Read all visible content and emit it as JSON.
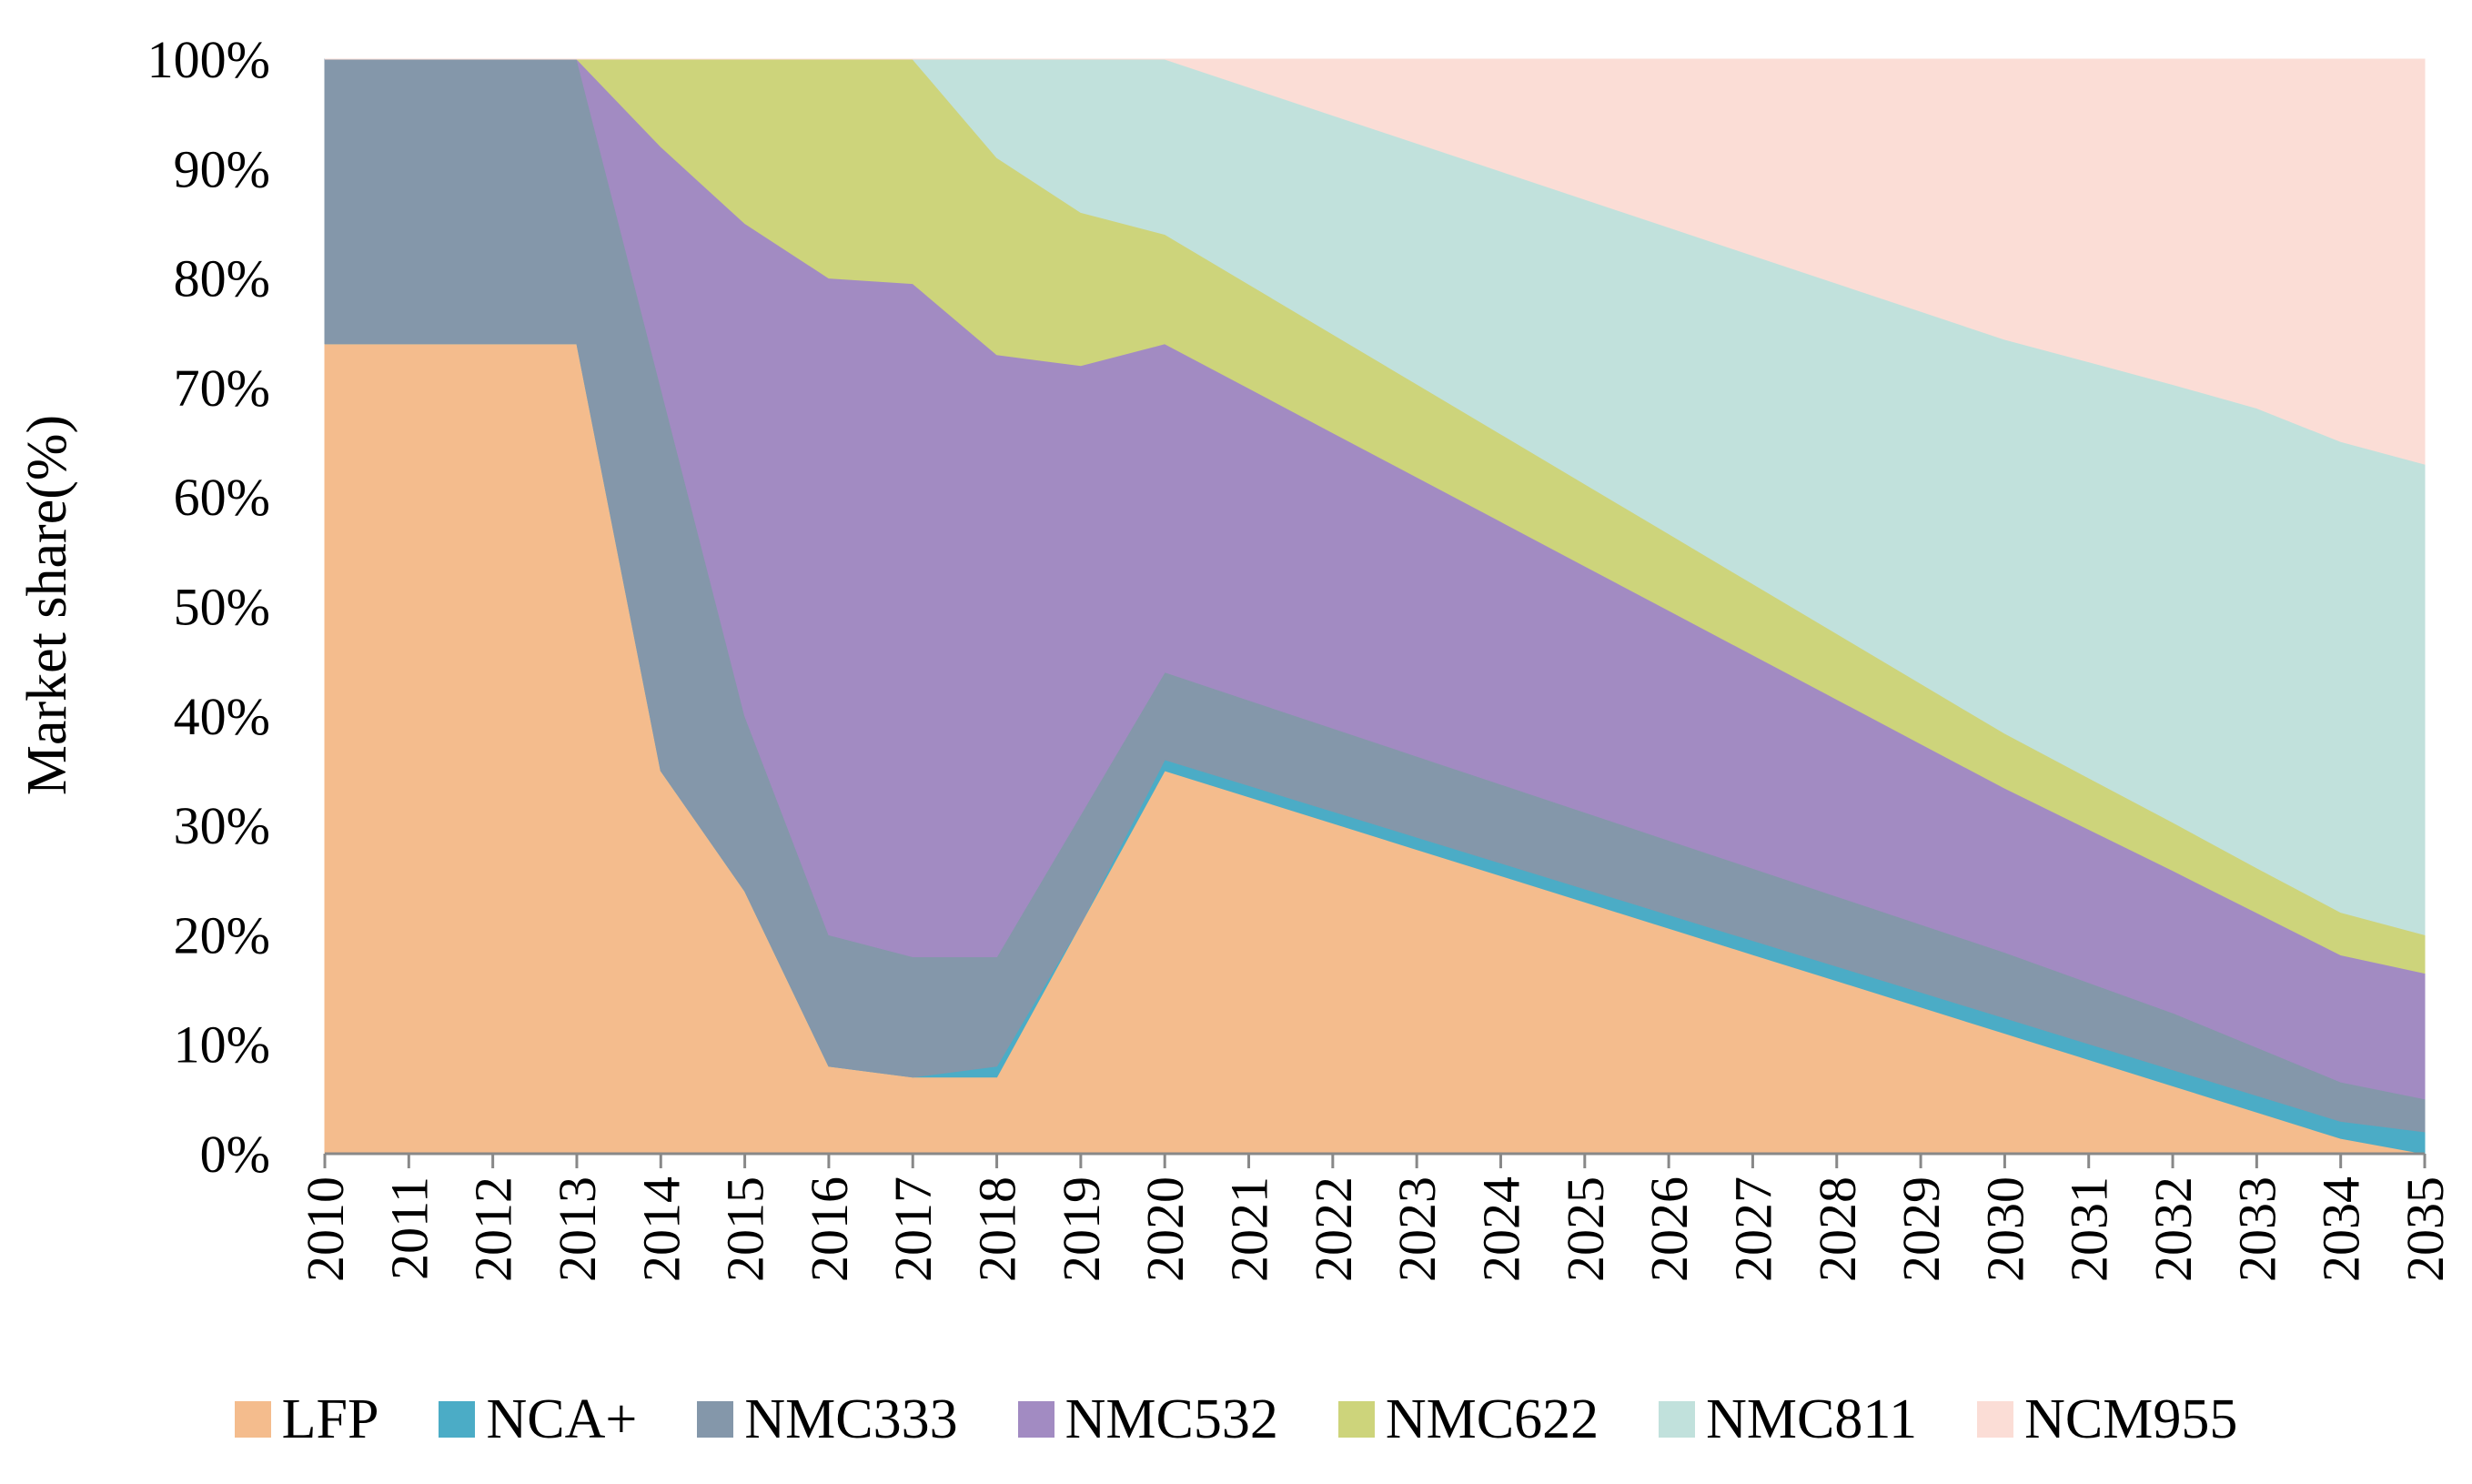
{
  "chart_data": {
    "type": "area",
    "stacked": true,
    "title": "",
    "xlabel": "",
    "ylabel": "Market share(%)",
    "ylim": [
      0,
      100
    ],
    "yticks": [
      "0%",
      "10%",
      "20%",
      "30%",
      "40%",
      "50%",
      "60%",
      "70%",
      "80%",
      "90%",
      "100%"
    ],
    "categories": [
      "2010",
      "2011",
      "2012",
      "2013",
      "2014",
      "2015",
      "2016",
      "2017",
      "2018",
      "2019",
      "2020",
      "2021",
      "2022",
      "2023",
      "2024",
      "2025",
      "2026",
      "2027",
      "2028",
      "2029",
      "2030",
      "2031",
      "2032",
      "2033",
      "2034",
      "2035"
    ],
    "legend_position": "bottom",
    "series": [
      {
        "name": "LFP",
        "color": "#F4BC8D",
        "values": [
          74,
          74,
          74,
          74,
          35,
          24,
          8,
          7,
          7,
          21,
          35,
          32.6,
          30.2,
          27.8,
          25.4,
          23,
          20.6,
          18.2,
          15.8,
          13.4,
          11,
          8.6,
          6.2,
          3.8,
          1.4,
          0
        ]
      },
      {
        "name": "NCA+",
        "color": "#4BACC6",
        "values": [
          0,
          0,
          0,
          0,
          0,
          0,
          0,
          0,
          1,
          0,
          1,
          1.04,
          1.08,
          1.12,
          1.16,
          1.2,
          1.24,
          1.28,
          1.32,
          1.36,
          1.4,
          1.44,
          1.48,
          1.52,
          1.56,
          2
        ]
      },
      {
        "name": "NMC333",
        "color": "#8497AA",
        "values": [
          26,
          26,
          26,
          26,
          35,
          16,
          12,
          11,
          10,
          10,
          8,
          7.8,
          7.6,
          7.4,
          7.2,
          7,
          6.8,
          6.6,
          6.4,
          6.2,
          6,
          5.6,
          5.2,
          4.4,
          3.6,
          3
        ]
      },
      {
        "name": "NMC532",
        "color": "#A28BC2",
        "values": [
          0,
          0,
          0,
          0,
          22,
          45,
          60,
          61.5,
          55,
          41,
          30,
          28.5,
          27,
          25.5,
          24,
          22.5,
          21,
          19.5,
          18,
          16.5,
          15,
          14,
          13,
          12.3,
          11.6,
          11.5
        ]
      },
      {
        "name": "NMC622",
        "color": "#CDD47B",
        "values": [
          0,
          0,
          0,
          0,
          8,
          15,
          20,
          20.5,
          18,
          14,
          10,
          9.5,
          9,
          8.5,
          8,
          7.5,
          7,
          6.5,
          6,
          5.5,
          5,
          4.7,
          4.4,
          4.1,
          3.9,
          3.5
        ]
      },
      {
        "name": "NMC811",
        "color": "#C1E1DC",
        "values": [
          0,
          0,
          0,
          0,
          0,
          0,
          0,
          0,
          9,
          14,
          16,
          18,
          20,
          22,
          24,
          26,
          28,
          30,
          32,
          34,
          36,
          38,
          40,
          42,
          43,
          43
        ]
      },
      {
        "name": "NCM955",
        "color": "#FBDDD6",
        "values": [
          0,
          0,
          0,
          0,
          0,
          0,
          0,
          0,
          0,
          0,
          0,
          2.56,
          5.12,
          7.68,
          10.24,
          12.8,
          15.36,
          17.92,
          20.48,
          23.04,
          25.6,
          27.66,
          29.72,
          31.88,
          34.94,
          37
        ]
      }
    ]
  }
}
